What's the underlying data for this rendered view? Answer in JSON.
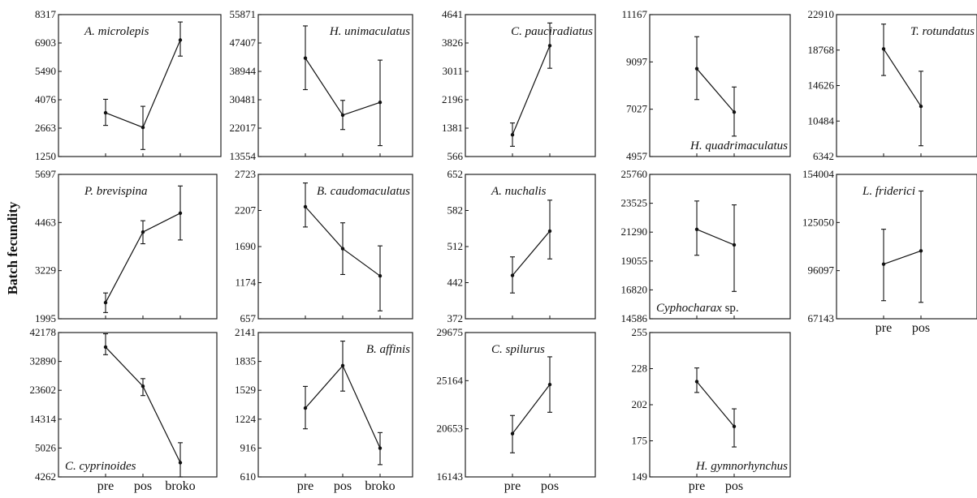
{
  "figure": {
    "ylabel": "Batch fecundity"
  },
  "chart_data": [
    {
      "type": "line",
      "species": "A. microlepis",
      "categories": [
        "pre",
        "pos",
        "broko"
      ],
      "show_xlabels": false,
      "yticks": [
        "1250",
        "2663",
        "4076",
        "5490",
        "6903",
        "8317"
      ],
      "ylim": [
        1250,
        8317
      ],
      "label_pos": "top-left",
      "values": [
        3430,
        2700,
        7050
      ],
      "lower": [
        2800,
        1600,
        6250
      ],
      "upper": [
        4100,
        3750,
        7950
      ]
    },
    {
      "type": "line",
      "species": "H. unimaculatus",
      "categories": [
        "pre",
        "pos",
        "broko"
      ],
      "show_xlabels": false,
      "yticks": [
        "13554",
        "22017",
        "30481",
        "38944",
        "47407",
        "55871"
      ],
      "ylim": [
        13554,
        55871
      ],
      "label_pos": "top-right",
      "values": [
        42900,
        25900,
        29700
      ],
      "lower": [
        33500,
        21600,
        16800
      ],
      "upper": [
        52500,
        30300,
        42300
      ]
    },
    {
      "type": "line",
      "species": "C. pauciradiatus",
      "categories": [
        "pre",
        "pos"
      ],
      "show_xlabels": false,
      "yticks": [
        "566",
        "1381",
        "2196",
        "3011",
        "3826",
        "4641"
      ],
      "ylim": [
        566,
        4641
      ],
      "label_pos": "top-right",
      "values": [
        1190,
        3750
      ],
      "lower": [
        860,
        3100
      ],
      "upper": [
        1530,
        4400
      ]
    },
    {
      "type": "line",
      "species": "H. quadrimaculatus",
      "categories": [
        "pre",
        "pos"
      ],
      "show_xlabels": false,
      "yticks": [
        "4957",
        "7027",
        "9097",
        "11167"
      ],
      "ylim": [
        4957,
        11167
      ],
      "label_pos": "bottom-right",
      "values": [
        8800,
        6900
      ],
      "lower": [
        7450,
        5850
      ],
      "upper": [
        10200,
        8000
      ]
    },
    {
      "type": "line",
      "species": "T. rotundatus",
      "categories": [
        "pre",
        "pos"
      ],
      "show_xlabels": false,
      "yticks": [
        "6342",
        "10484",
        "14626",
        "18768",
        "22910"
      ],
      "ylim": [
        6342,
        22910
      ],
      "label_pos": "top-right",
      "values": [
        18900,
        12200
      ],
      "lower": [
        15800,
        7600
      ],
      "upper": [
        21800,
        16300
      ]
    },
    {
      "type": "line",
      "species": "P. brevispina",
      "categories": [
        "pre",
        "pos",
        "broko"
      ],
      "show_xlabels": false,
      "yticks": [
        "1995",
        "3229",
        "4463",
        "5697"
      ],
      "ylim": [
        1500,
        5697
      ],
      "label_pos": "top-left",
      "values": [
        1970,
        4020,
        4570
      ],
      "lower": [
        1680,
        3680,
        3790
      ],
      "upper": [
        2250,
        4350,
        5360
      ]
    },
    {
      "type": "line",
      "species": "B. caudomaculatus",
      "categories": [
        "pre",
        "pos",
        "broko"
      ],
      "show_xlabels": false,
      "yticks": [
        "657",
        "1174",
        "1690",
        "2207",
        "2723"
      ],
      "ylim": [
        657,
        2723
      ],
      "label_pos": "top-right",
      "values": [
        2260,
        1660,
        1270
      ],
      "lower": [
        1970,
        1290,
        770
      ],
      "upper": [
        2600,
        2030,
        1700
      ]
    },
    {
      "type": "line",
      "species": "A. nuchalis",
      "categories": [
        "pre",
        "pos"
      ],
      "show_xlabels": false,
      "yticks": [
        "372",
        "442",
        "512",
        "582",
        "652"
      ],
      "ylim": [
        372,
        652
      ],
      "label_pos": "top-left",
      "values": [
        456,
        542
      ],
      "lower": [
        422,
        488
      ],
      "upper": [
        492,
        602
      ]
    },
    {
      "type": "line",
      "species": "Cyphocharax sp.",
      "categories": [
        "pre",
        "pos"
      ],
      "show_xlabels": false,
      "yticks": [
        "14586",
        "16820",
        "19055",
        "21290",
        "23525",
        "25760"
      ],
      "ylim": [
        14586,
        25760
      ],
      "label_pos": "bottom-left",
      "values": [
        21500,
        20300
      ],
      "lower": [
        19500,
        16700
      ],
      "upper": [
        23700,
        23400
      ]
    },
    {
      "type": "line",
      "species": "L. friderici",
      "categories": [
        "pre",
        "pos"
      ],
      "show_xlabels": true,
      "yticks": [
        "67143",
        "96097",
        "125050",
        "154004"
      ],
      "ylim": [
        67143,
        154004
      ],
      "label_pos": "top-left",
      "values": [
        100000,
        108000
      ],
      "lower": [
        78000,
        77000
      ],
      "upper": [
        121000,
        144000
      ]
    },
    {
      "type": "line",
      "species": "C. cyprinoides",
      "categories": [
        "pre",
        "pos",
        "broko"
      ],
      "show_xlabels": true,
      "yticks": [
        "4262",
        "5026",
        "14314",
        "23602",
        "32890",
        "42178"
      ],
      "ylim": [
        -1300,
        42178
      ],
      "label_pos": "bottom-left",
      "values": [
        37800,
        26000,
        3000
      ],
      "lower": [
        35500,
        23200,
        -1300
      ],
      "upper": [
        41800,
        28300,
        9000
      ]
    },
    {
      "type": "line",
      "species": "B. affinis",
      "categories": [
        "pre",
        "pos",
        "broko"
      ],
      "show_xlabels": true,
      "yticks": [
        "610",
        "916",
        "1224",
        "1529",
        "1835",
        "2141"
      ],
      "ylim": [
        610,
        2141
      ],
      "label_pos": "top-right",
      "values": [
        1340,
        1790,
        915
      ],
      "lower": [
        1120,
        1520,
        740
      ],
      "upper": [
        1570,
        2050,
        1080
      ]
    },
    {
      "type": "line",
      "species": "C. spilurus",
      "categories": [
        "pre",
        "pos"
      ],
      "show_xlabels": true,
      "yticks": [
        "16143",
        "20653",
        "25164",
        "29675"
      ],
      "ylim": [
        16143,
        29675
      ],
      "label_pos": "top-left",
      "values": [
        20200,
        24800
      ],
      "lower": [
        18400,
        22200
      ],
      "upper": [
        21900,
        27400
      ]
    },
    {
      "type": "line",
      "species": "H. gymnorhynchus",
      "categories": [
        "pre",
        "pos"
      ],
      "show_xlabels": true,
      "yticks": [
        "149",
        "175",
        "202",
        "228",
        "255"
      ],
      "ylim": [
        149,
        255
      ],
      "label_pos": "bottom-right",
      "values": [
        219,
        186
      ],
      "lower": [
        211,
        171
      ],
      "upper": [
        229,
        199
      ]
    }
  ]
}
